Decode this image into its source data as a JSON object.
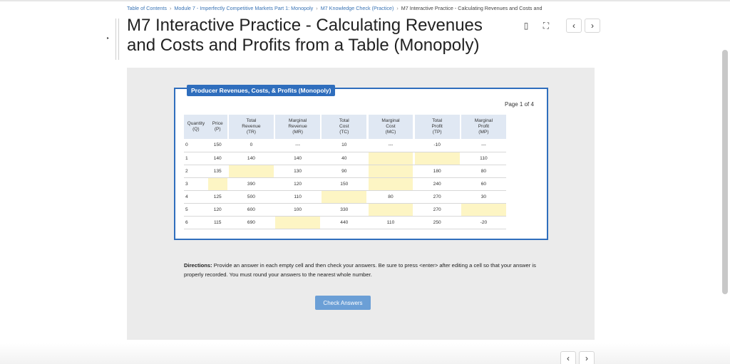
{
  "breadcrumb": {
    "items": [
      "Table of Contents",
      "Module 7 - Imperfectly Competitive Markets Part 1: Monopoly",
      "M7 Knowledge Check (Practice)"
    ],
    "current": "M7 Interactive Practice - Calculating Revenues and Costs and",
    "separator": "›"
  },
  "page": {
    "title": "M7 Interactive Practice - Calculating Revenues and Costs and Profits from a Table (Monopoly)"
  },
  "toolbar": {
    "bookmark_glyph": "▯",
    "fullscreen_glyph": "⛶",
    "prev_glyph": "‹",
    "next_glyph": "›"
  },
  "widget": {
    "header": "Producer Revenues, Costs, & Profits (Monopoly)",
    "page_indicator": "Page 1 of 4",
    "columns": [
      {
        "line1": "Quantity",
        "line2": "(Q)",
        "line3": ""
      },
      {
        "line1": "Price",
        "line2": "(P)",
        "line3": ""
      },
      {
        "line1": "Total",
        "line2": "Revenue",
        "line3": "(TR)"
      },
      {
        "line1": "Marginal",
        "line2": "Revenue",
        "line3": "(MR)"
      },
      {
        "line1": "Total",
        "line2": "Cost",
        "line3": "(TC)"
      },
      {
        "line1": "Marginal",
        "line2": "Cost",
        "line3": "(MC)"
      },
      {
        "line1": "Total",
        "line2": "Profit",
        "line3": "(TP)"
      },
      {
        "line1": "Marginal",
        "line2": "Profit",
        "line3": "(MP)"
      }
    ],
    "rows": [
      [
        "0",
        "150",
        "0",
        "---",
        "10",
        "---",
        "-10",
        "---"
      ],
      [
        "1",
        "140",
        "140",
        "140",
        "40",
        "",
        "",
        "110"
      ],
      [
        "2",
        "135",
        "",
        "130",
        "90",
        "",
        "180",
        "80"
      ],
      [
        "3",
        "",
        "390",
        "120",
        "150",
        "",
        "240",
        "60"
      ],
      [
        "4",
        "125",
        "500",
        "110",
        "",
        "80",
        "270",
        "30"
      ],
      [
        "5",
        "120",
        "600",
        "100",
        "330",
        "",
        "270",
        ""
      ],
      [
        "6",
        "115",
        "690",
        "",
        "440",
        "110",
        "250",
        "-20"
      ]
    ]
  },
  "directions": {
    "label": "Directions:",
    "text": "Provide an answer in each empty cell and then check your answers. Be sure to press <enter> after editing a cell so that your answer is properly recorded. You must round your answers to the nearest whole number."
  },
  "check_button": {
    "label": "Check Answers"
  },
  "colors": {
    "accent_blue": "#2f6ebd",
    "input_yellow": "#fdf5c4",
    "header_blue": "#e0e8f3",
    "button_blue": "#6b9fd6"
  }
}
